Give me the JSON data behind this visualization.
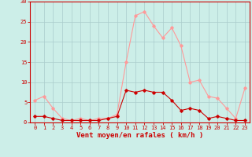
{
  "x": [
    0,
    1,
    2,
    3,
    4,
    5,
    6,
    7,
    8,
    9,
    10,
    11,
    12,
    13,
    14,
    15,
    16,
    17,
    18,
    19,
    20,
    21,
    22,
    23
  ],
  "vent_moyen": [
    1.5,
    1.5,
    1.0,
    0.5,
    0.5,
    0.5,
    0.5,
    0.5,
    1.0,
    1.5,
    8.0,
    7.5,
    8.0,
    7.5,
    7.5,
    5.5,
    3.0,
    3.5,
    3.0,
    1.0,
    1.5,
    1.0,
    0.5,
    0.5
  ],
  "rafales": [
    5.5,
    6.5,
    3.5,
    1.0,
    0.5,
    1.0,
    0.5,
    1.0,
    1.0,
    2.0,
    15.0,
    26.5,
    27.5,
    24.0,
    21.0,
    23.5,
    19.0,
    10.0,
    10.5,
    6.5,
    6.0,
    3.5,
    1.0,
    8.5
  ],
  "color_moyen": "#cc0000",
  "color_rafales": "#ff9999",
  "bg_color": "#cceee8",
  "grid_color": "#aacccc",
  "xlabel": "Vent moyen/en rafales ( km/h )",
  "yticks": [
    0,
    5,
    10,
    15,
    20,
    25,
    30
  ],
  "xlim": [
    -0.5,
    23.5
  ],
  "ylim": [
    0,
    30
  ],
  "axis_color": "#cc0000",
  "tick_color": "#cc0000",
  "label_color": "#cc0000",
  "tick_fontsize": 5.0,
  "xlabel_fontsize": 6.5
}
